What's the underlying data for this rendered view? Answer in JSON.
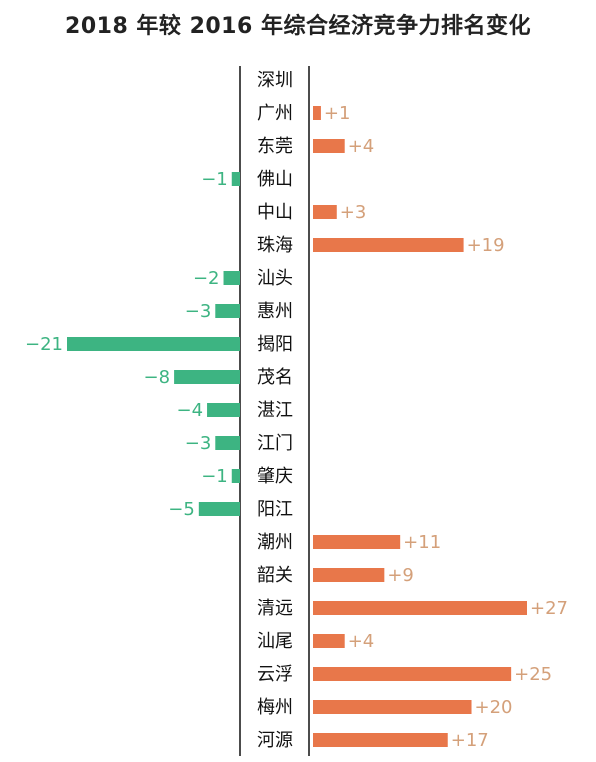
{
  "chart_data": {
    "type": "bar",
    "orientation": "horizontal",
    "title": "2018 年较 2016 年综合经济竞争力排名变化",
    "categories": [
      "深圳",
      "广州",
      "东莞",
      "佛山",
      "中山",
      "珠海",
      "汕头",
      "惠州",
      "揭阳",
      "茂名",
      "湛江",
      "江门",
      "肇庆",
      "阳江",
      "潮州",
      "韶关",
      "清远",
      "汕尾",
      "云浮",
      "梅州",
      "河源"
    ],
    "values": [
      0,
      1,
      4,
      -1,
      3,
      19,
      -2,
      -3,
      -21,
      -8,
      -4,
      -3,
      -1,
      -5,
      11,
      9,
      27,
      4,
      25,
      20,
      17
    ],
    "labels": [
      "",
      "+1",
      "+4",
      "−1",
      "+3",
      "+19",
      "−2",
      "−3",
      "−21",
      "−8",
      "−4",
      "−3",
      "−1",
      "−5",
      "+11",
      "+9",
      "+27",
      "+4",
      "+25",
      "+20",
      "+17"
    ],
    "colors": {
      "positive": "#E8774A",
      "negative": "#3DB482",
      "positive_label": "#D4A07A",
      "negative_label": "#3DB482"
    },
    "legend": "none",
    "grid": false
  }
}
